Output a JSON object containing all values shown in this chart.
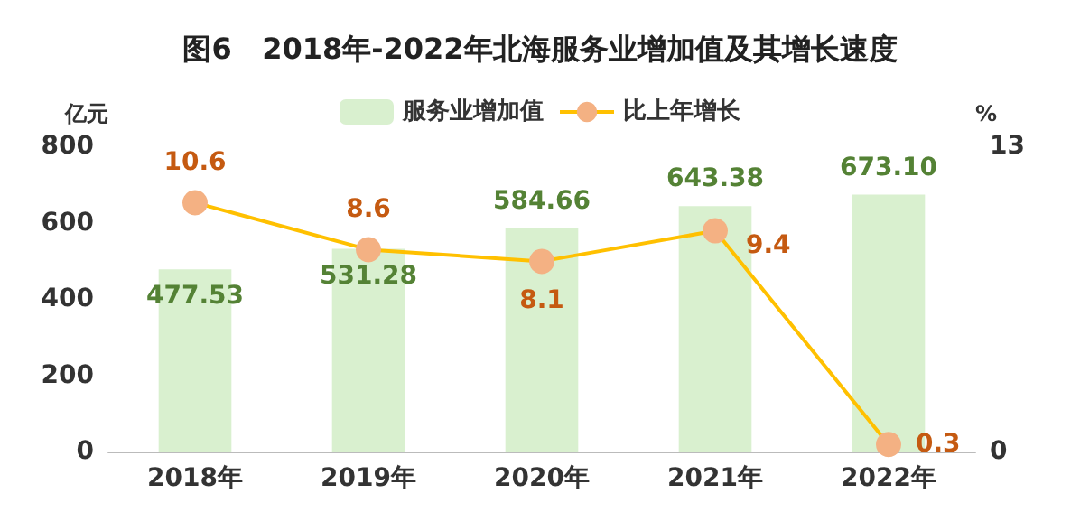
{
  "chart_data": {
    "type": "bar",
    "title": "图6   2018年-2022年北海服务业增加值及其增长速度",
    "ylabel": "亿元",
    "y2label": "%",
    "categories": [
      "2018年",
      "2019年",
      "2020年",
      "2021年",
      "2022年"
    ],
    "series": [
      {
        "name": "服务业增加值",
        "color": "#d9f0cf",
        "values": [
          477.53,
          531.28,
          584.66,
          643.38,
          673.1
        ],
        "value_labels": [
          "477.53",
          "531.28",
          "584.66",
          "643.38",
          "673.10"
        ]
      },
      {
        "name": "比上年增长",
        "type": "line",
        "axis": "y2",
        "color": "#ffc000",
        "values": [
          10.6,
          8.6,
          8.1,
          9.4,
          0.3
        ],
        "value_labels": [
          "10.6",
          "8.6",
          "8.1",
          "9.4",
          "0.3"
        ]
      }
    ],
    "ylim": [
      0,
      800
    ],
    "yticks": [
      0,
      200,
      400,
      600,
      800
    ],
    "y2lim": [
      0,
      13
    ],
    "y2ticks": [
      0,
      13
    ],
    "legend": "top",
    "grid": false,
    "marker": "circle",
    "line_style": "solid"
  }
}
